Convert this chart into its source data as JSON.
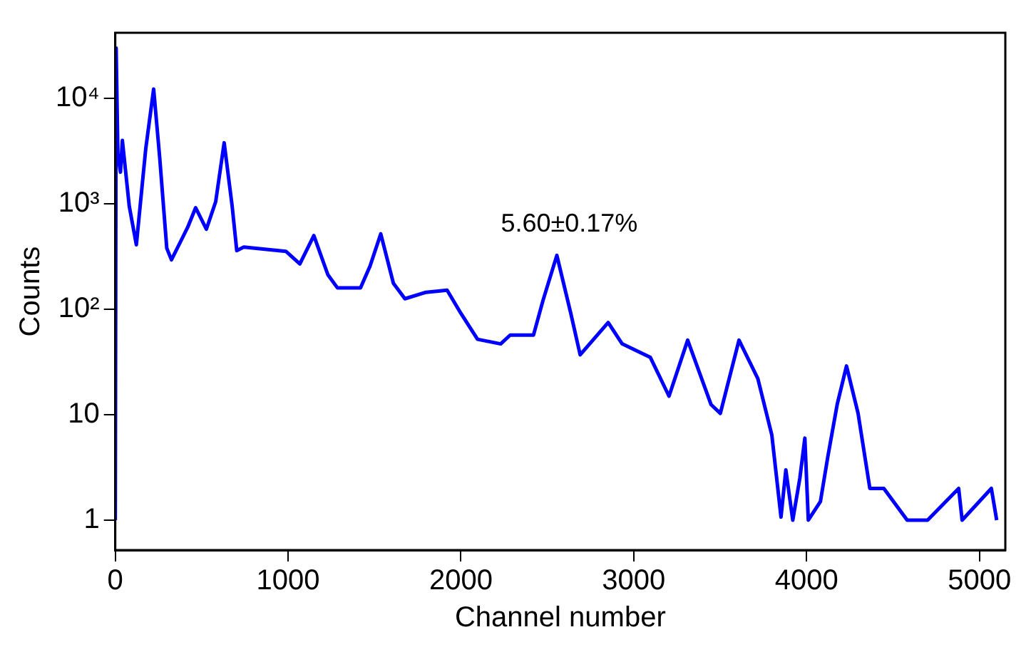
{
  "chart_data": {
    "type": "line",
    "xlabel": "Channel number",
    "ylabel": "Counts",
    "log": "y",
    "grid": false,
    "legend": false,
    "marker": "none",
    "line_style": "solid",
    "xlim": [
      0,
      5150
    ],
    "xticks": [
      0,
      1000,
      2000,
      3000,
      4000,
      5000
    ],
    "ylim": [
      0.52,
      42000
    ],
    "yticks": [
      1,
      10,
      {
        "value": 100,
        "label": "10²"
      },
      {
        "value": 1000,
        "label": "10³"
      },
      {
        "value": 10000,
        "label": "10⁴"
      }
    ],
    "annotations": [
      "5.60±0.17%"
    ],
    "series": [
      {
        "color": "#0000ff",
        "x": [
          0,
          5,
          15,
          30,
          41,
          81,
          122,
          176,
          222,
          257,
          298,
          325,
          419,
          465,
          527,
          581,
          630,
          676,
          703,
          744,
          987,
          1068,
          1149,
          1230,
          1285,
          1419,
          1474,
          1536,
          1609,
          1676,
          1798,
          1920,
          2001,
          2096,
          2230,
          2285,
          2420,
          2474,
          2555,
          2636,
          2690,
          2852,
          2933,
          3096,
          3204,
          3312,
          3447,
          3501,
          3609,
          3718,
          3799,
          3852,
          3880,
          3920,
          3961,
          3990,
          4010,
          4080,
          4123,
          4177,
          4231,
          4298,
          4366,
          4447,
          4582,
          4700,
          4880,
          4900,
          5069,
          5100
        ],
        "values": [
          1,
          30000,
          3000,
          2000,
          4000,
          950,
          410,
          3300,
          12300,
          2750,
          380,
          295,
          600,
          920,
          575,
          1050,
          3800,
          960,
          360,
          390,
          355,
          270,
          500,
          213,
          160,
          160,
          257,
          520,
          177,
          126,
          145,
          152,
          91,
          52,
          47,
          57,
          57,
          120,
          325,
          91,
          37,
          75,
          47,
          35,
          15,
          51,
          12.5,
          10.3,
          51,
          22,
          6.4,
          1.07,
          3,
          1,
          2.5,
          6,
          1,
          1.5,
          4,
          12.5,
          29,
          10.3,
          2,
          2,
          1,
          1,
          2,
          1,
          2,
          1
        ]
      }
    ]
  }
}
